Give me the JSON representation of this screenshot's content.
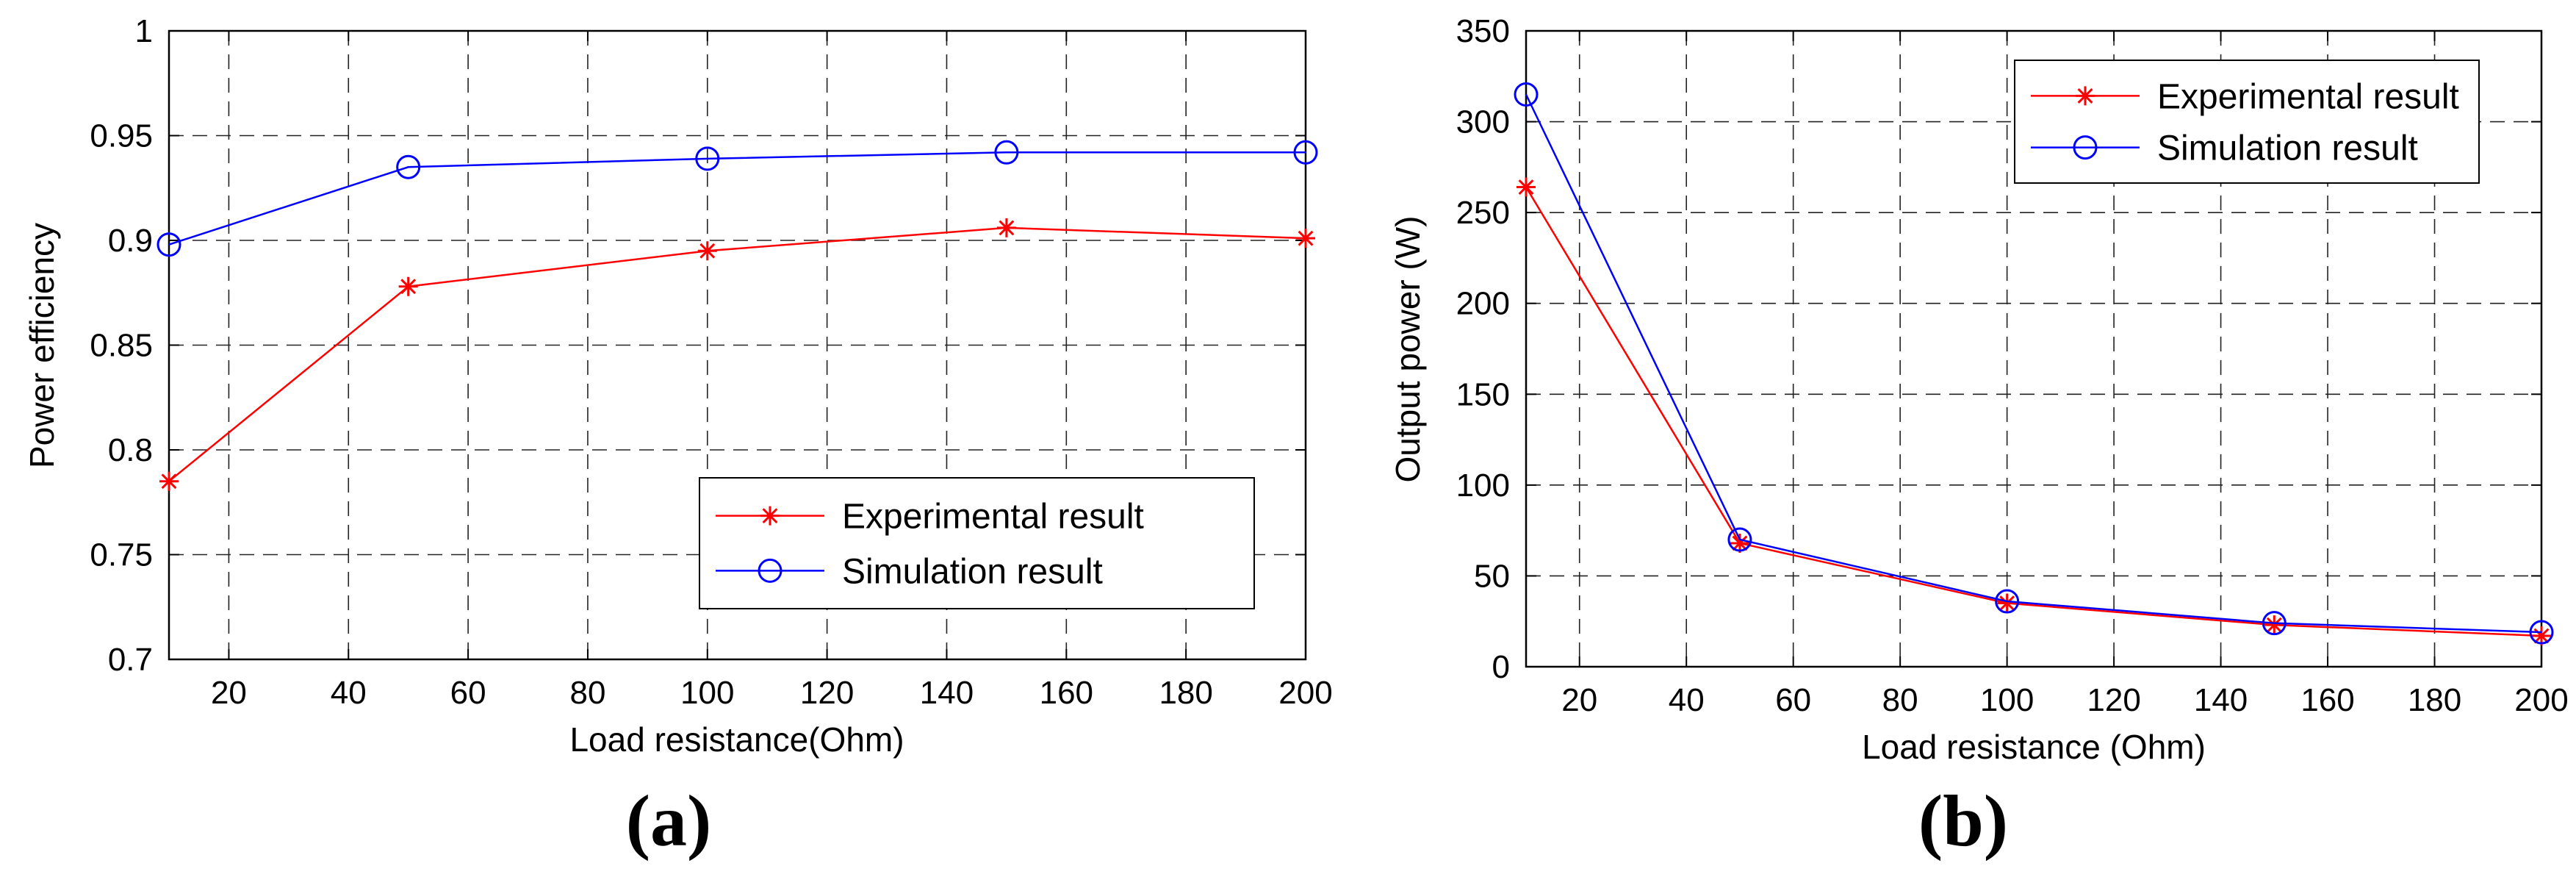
{
  "chart_data": [
    {
      "type": "line",
      "panel_label": "(a)",
      "xlabel": "Load resistance(Ohm)",
      "ylabel": "Power efficiency",
      "xlim": [
        10,
        200
      ],
      "ylim": [
        0.7,
        1.0
      ],
      "xticks": [
        20,
        40,
        60,
        80,
        100,
        120,
        140,
        160,
        180,
        200
      ],
      "yticks": [
        0.7,
        0.75,
        0.8,
        0.85,
        0.9,
        0.95,
        1
      ],
      "ytick_labels": [
        "0.7",
        "0.75",
        "0.8",
        "0.85",
        "0.9",
        "0.95",
        "1"
      ],
      "grid": true,
      "legend_position": "bottom-right",
      "x": [
        10,
        50,
        100,
        150,
        200
      ],
      "series": [
        {
          "name": "Experimental result",
          "color": "#ff0000",
          "marker": "star",
          "values": [
            0.785,
            0.878,
            0.895,
            0.906,
            0.901
          ]
        },
        {
          "name": "Simulation result",
          "color": "#0000ff",
          "marker": "circle",
          "values": [
            0.898,
            0.935,
            0.939,
            0.942,
            0.942
          ]
        }
      ]
    },
    {
      "type": "line",
      "panel_label": "(b)",
      "xlabel": "Load resistance (Ohm)",
      "ylabel": "Output power (W)",
      "xlim": [
        10,
        200
      ],
      "ylim": [
        0,
        350
      ],
      "xticks": [
        20,
        40,
        60,
        80,
        100,
        120,
        140,
        160,
        180,
        200
      ],
      "yticks": [
        0,
        50,
        100,
        150,
        200,
        250,
        300,
        350
      ],
      "ytick_labels": [
        "0",
        "50",
        "100",
        "150",
        "200",
        "250",
        "300",
        "350"
      ],
      "grid": true,
      "legend_position": "top-right",
      "x": [
        10,
        50,
        100,
        150,
        200
      ],
      "series": [
        {
          "name": "Experimental result",
          "color": "#ff0000",
          "marker": "star",
          "values": [
            264,
            68,
            35,
            23,
            17
          ]
        },
        {
          "name": "Simulation result",
          "color": "#0000ff",
          "marker": "circle",
          "values": [
            315,
            70,
            36,
            24,
            19
          ]
        }
      ]
    }
  ]
}
